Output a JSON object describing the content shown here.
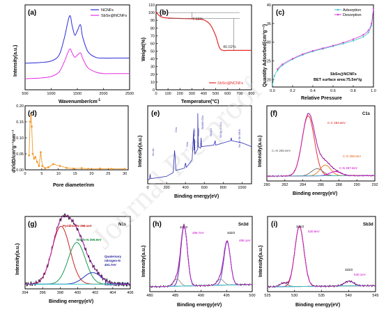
{
  "panels": {
    "a": {
      "label": "(a)",
      "xlabel": "Wavenumber/cm",
      "xlabel_sup": "-1",
      "ylabel": "Intensity(a.u.)",
      "xticks": [
        "500",
        "1000",
        "1500",
        "2000",
        "2500"
      ],
      "legend": [
        "NCNFs",
        "SbSn@NCNFs"
      ],
      "colors": [
        "#2b2bd6",
        "#e62ee6"
      ]
    },
    "b": {
      "label": "(b)",
      "xlabel": "Temperature(°C)",
      "ylabel": "Weight(%)",
      "xticks": [
        "0",
        "100",
        "200",
        "300",
        "400",
        "500",
        "600",
        "700",
        "800"
      ],
      "yticks": [
        "0",
        "10",
        "20",
        "30",
        "40",
        "50",
        "60",
        "70",
        "80",
        "90",
        "100",
        "110"
      ],
      "ann1": "7.62%",
      "ann2": "40.02%",
      "legend": "SbSn@NCNFs",
      "color": "#e52a2a"
    },
    "c": {
      "label": "(c)",
      "xlabel": "Relative Pressure",
      "ylabel": "Quantity Adsorbed(cm³g⁻¹)",
      "xticks": [
        "0.0",
        "0.2",
        "0.4",
        "0.6",
        "0.8",
        "1.0"
      ],
      "yticks": [
        "20",
        "25",
        "30",
        "35",
        "40"
      ],
      "legend": [
        "Adsorption",
        "Desorption"
      ],
      "colors": [
        "#3fc7c7",
        "#d63ad6"
      ],
      "note1": "SbSn@NCNFs",
      "note2": "BET surface area:75.5m²/g"
    },
    "d": {
      "label": "(d)",
      "xlabel": "Pore diameter/nm",
      "ylabel": "dV/dD/cm³g⁻¹nm⁻¹",
      "xticks": [
        "0",
        "5",
        "10",
        "15",
        "20",
        "25",
        "30"
      ],
      "yticks": [
        "0.00",
        "0.05",
        "0.10",
        "0.15",
        "0.20"
      ],
      "color": "#f0992a"
    },
    "e": {
      "label": "(e)",
      "xlabel": "Binding energy(eV)",
      "ylabel": "Intensity(a.u.)",
      "xticks": [
        "0",
        "200",
        "400",
        "600",
        "800",
        "1000"
      ],
      "peaks": [
        "Sn 4d",
        "C1s",
        "N1s",
        "Sn3d5",
        "Sn3d3",
        "Sb3d5 O1s",
        "Sb3p3",
        "Sn 3p O KLL",
        "Sn 3s Sb MNN"
      ]
    },
    "f": {
      "label": "(f)",
      "corner": "C1s",
      "xlabel": "Binding energy(eV)",
      "ylabel": "Intensity(a.u.)",
      "xticks": [
        "280",
        "282",
        "284",
        "286",
        "288",
        "290",
        "292"
      ],
      "peaks": [
        "C-C 284.6eV",
        "C-O 286.5eV",
        "C=N 285.6eV",
        "C-N 287.6eV"
      ]
    },
    "g": {
      "label": "(g)",
      "corner": "N1s",
      "xlabel": "Binding energy(eV)",
      "ylabel": "Intensity(a.u.)",
      "xticks": [
        "394",
        "396",
        "398",
        "400",
        "402",
        "404",
        "406"
      ],
      "peaks": [
        "Pyridinic-N 398.1eV",
        "Nitrile-N 399.9eV",
        "Quaternary",
        "nitrogen-N",
        "401.7eV"
      ],
      "note": "SbSn@NCNFs"
    },
    "h": {
      "label": "(h)",
      "corner": "Sn3d",
      "xlabel": "Binding energy(eV)",
      "ylabel": "Intensity(a.u.)",
      "xticks": [
        "480",
        "485",
        "490",
        "495",
        "500"
      ],
      "peaks": [
        "3d5/2",
        "486.7eV",
        "3d3/2",
        "495.1eV"
      ]
    },
    "i": {
      "label": "(i)",
      "corner": "Sb3d",
      "xlabel": "Binding energy(eV)",
      "ylabel": "Intensity(a.u.)",
      "xticks": [
        "525",
        "530",
        "535",
        "540",
        "545"
      ],
      "peaks": [
        "3d5/2",
        "530.9eV",
        "3d3/2",
        "540.1eV"
      ]
    }
  },
  "watermark": "Journal Pre-proof",
  "chart_data": [
    {
      "type": "line",
      "panel": "a",
      "title": "",
      "xlabel": "Wavenumber/cm-1",
      "ylabel": "Intensity(a.u.)",
      "xlim": [
        500,
        2500
      ],
      "series": [
        {
          "name": "NCNFs",
          "x": [
            500,
            800,
            1000,
            1150,
            1250,
            1350,
            1400,
            1450,
            1500,
            1560,
            1600,
            1700,
            1850,
            2000,
            2200,
            2500
          ],
          "y": [
            0.36,
            0.37,
            0.39,
            0.47,
            0.7,
            1.0,
            0.87,
            0.74,
            0.8,
            0.88,
            0.72,
            0.52,
            0.44,
            0.43,
            0.43,
            0.43
          ]
        },
        {
          "name": "SbSn@NCNFs",
          "x": [
            500,
            800,
            1000,
            1150,
            1250,
            1350,
            1400,
            1450,
            1500,
            1560,
            1600,
            1700,
            1850,
            2000,
            2200,
            2500
          ],
          "y": [
            0.15,
            0.16,
            0.18,
            0.24,
            0.38,
            0.55,
            0.5,
            0.44,
            0.47,
            0.5,
            0.43,
            0.3,
            0.24,
            0.22,
            0.22,
            0.22
          ]
        }
      ]
    },
    {
      "type": "line",
      "panel": "b",
      "title": "",
      "xlabel": "Temperature(°C)",
      "ylabel": "Weight(%)",
      "xlim": [
        0,
        800
      ],
      "ylim": [
        0,
        110
      ],
      "series": [
        {
          "name": "SbSn@NCNFs",
          "x": [
            0,
            20,
            50,
            100,
            200,
            300,
            350,
            400,
            430,
            460,
            500,
            530,
            560,
            600,
            700,
            800
          ],
          "y": [
            101,
            97,
            94,
            93,
            92.4,
            92,
            91.8,
            90.5,
            88,
            83,
            70,
            55,
            51,
            51,
            51,
            51
          ]
        }
      ]
    },
    {
      "type": "scatter",
      "panel": "c",
      "title": "",
      "xlabel": "Relative Pressure",
      "ylabel": "Quantity Adsorbed(cm3g-1)",
      "xlim": [
        0,
        1
      ],
      "ylim": [
        18,
        40
      ],
      "series": [
        {
          "name": "Adsorption",
          "x": [
            0.0,
            0.02,
            0.05,
            0.1,
            0.2,
            0.3,
            0.4,
            0.5,
            0.6,
            0.7,
            0.8,
            0.9,
            0.95,
            0.98,
            1.0
          ],
          "y": [
            18.5,
            21,
            22.4,
            23.8,
            25.4,
            26.6,
            27.5,
            28.2,
            28.9,
            29.6,
            30.4,
            31.5,
            32.6,
            34.5,
            39
          ]
        },
        {
          "name": "Desorption",
          "x": [
            1.0,
            0.98,
            0.95,
            0.9,
            0.8,
            0.7,
            0.6,
            0.5,
            0.4,
            0.3,
            0.2,
            0.1,
            0.05
          ],
          "y": [
            39,
            35,
            33.2,
            32,
            30.8,
            29.9,
            29.1,
            28.4,
            27.7,
            26.8,
            25.6,
            24.1,
            22.8
          ]
        }
      ]
    },
    {
      "type": "line",
      "panel": "d",
      "title": "",
      "xlabel": "Pore diameter/nm",
      "ylabel": "dV/dD/cm3g-1nm-1",
      "xlim": [
        0,
        31
      ],
      "ylim": [
        0,
        0.2
      ],
      "series": [
        {
          "name": "",
          "x": [
            1.2,
            1.5,
            1.8,
            2.0,
            2.3,
            2.7,
            3.1,
            3.6,
            4.2,
            4.7,
            5.2,
            6.0,
            7.0,
            8.5,
            10.5,
            12.5,
            14.5,
            17,
            19,
            22.5,
            26,
            30
          ],
          "y": [
            0.045,
            0.15,
            0.17,
            0.135,
            0.05,
            0.035,
            0.04,
            0.025,
            0.012,
            0.055,
            0.012,
            0.005,
            0.008,
            0.018,
            0.012,
            0.006,
            0.004,
            0.005,
            0.003,
            0.004,
            0.003,
            0.003
          ]
        }
      ]
    },
    {
      "type": "line",
      "panel": "e",
      "title": "",
      "xlabel": "Binding energy(eV)",
      "ylabel": "Intensity(a.u.)",
      "xlim": [
        0,
        1100
      ],
      "series": [
        {
          "name": "",
          "x": [
            0,
            20,
            25,
            30,
            100,
            200,
            270,
            285,
            300,
            390,
            400,
            410,
            470,
            487,
            490,
            496,
            500,
            530,
            531,
            535,
            560,
            566,
            570,
            700,
            715,
            720,
            880,
            885,
            890,
            1000,
            1100
          ],
          "y": [
            0.05,
            0.06,
            0.13,
            0.07,
            0.08,
            0.1,
            0.15,
            0.45,
            0.18,
            0.21,
            0.28,
            0.22,
            0.32,
            0.72,
            0.45,
            0.6,
            0.4,
            0.47,
            0.95,
            0.5,
            0.48,
            0.62,
            0.5,
            0.52,
            0.58,
            0.52,
            0.58,
            0.62,
            0.58,
            0.55,
            0.5
          ]
        }
      ]
    },
    {
      "type": "line",
      "panel": "f",
      "title": "C1s",
      "xlabel": "Binding energy(eV)",
      "ylabel": "Intensity(a.u.)",
      "xlim": [
        280,
        292
      ],
      "series": [
        {
          "name": "C-C 284.6eV",
          "peak": 284.6,
          "height": 1.0,
          "fwhm": 1.6
        },
        {
          "name": "C=N 285.6eV",
          "peak": 285.6,
          "height": 0.12,
          "fwhm": 1.5
        },
        {
          "name": "C-O 286.5eV",
          "peak": 286.5,
          "height": 0.18,
          "fwhm": 1.4
        },
        {
          "name": "C-N 287.6eV",
          "peak": 287.6,
          "height": 0.07,
          "fwhm": 1.5
        }
      ]
    },
    {
      "type": "line",
      "panel": "g",
      "title": "N1s",
      "xlabel": "Binding energy(eV)",
      "ylabel": "Intensity(a.u.)",
      "xlim": [
        394,
        406
      ],
      "series": [
        {
          "name": "Pyridinic-N 398.1eV",
          "peak": 398.1,
          "height": 1.0,
          "fwhm": 2.4
        },
        {
          "name": "Nitrile-N 399.9eV",
          "peak": 399.9,
          "height": 0.72,
          "fwhm": 2.3
        },
        {
          "name": "Quaternary nitrogen-N 401.7eV",
          "peak": 401.7,
          "height": 0.2,
          "fwhm": 2.4
        }
      ]
    },
    {
      "type": "line",
      "panel": "h",
      "title": "Sn3d",
      "xlabel": "Binding energy(eV)",
      "ylabel": "Intensity(a.u.)",
      "xlim": [
        480,
        500
      ],
      "series": [
        {
          "name": "3d5/2 486.7eV",
          "peak": 486.7,
          "height": 1.0,
          "fwhm": 1.5
        },
        {
          "name": "3d3/2 495.1eV",
          "peak": 495.1,
          "height": 0.72,
          "fwhm": 1.5
        },
        {
          "name": "",
          "peak": 485.3,
          "height": 0.12,
          "fwhm": 1.5
        },
        {
          "name": "",
          "peak": 493.8,
          "height": 0.1,
          "fwhm": 1.5
        }
      ]
    },
    {
      "type": "line",
      "panel": "i",
      "title": "Sb3d",
      "xlabel": "Binding energy(eV)",
      "ylabel": "Intensity(a.u.)",
      "xlim": [
        525,
        545
      ],
      "series": [
        {
          "name": "3d5/2 530.9eV",
          "peak": 530.9,
          "height": 1.0,
          "fwhm": 2.0
        },
        {
          "name": "3d3/2 540.1eV",
          "peak": 540.1,
          "height": 0.08,
          "fwhm": 2.0
        },
        {
          "name": "",
          "peak": 528.0,
          "height": 0.06,
          "fwhm": 1.6
        }
      ]
    }
  ]
}
